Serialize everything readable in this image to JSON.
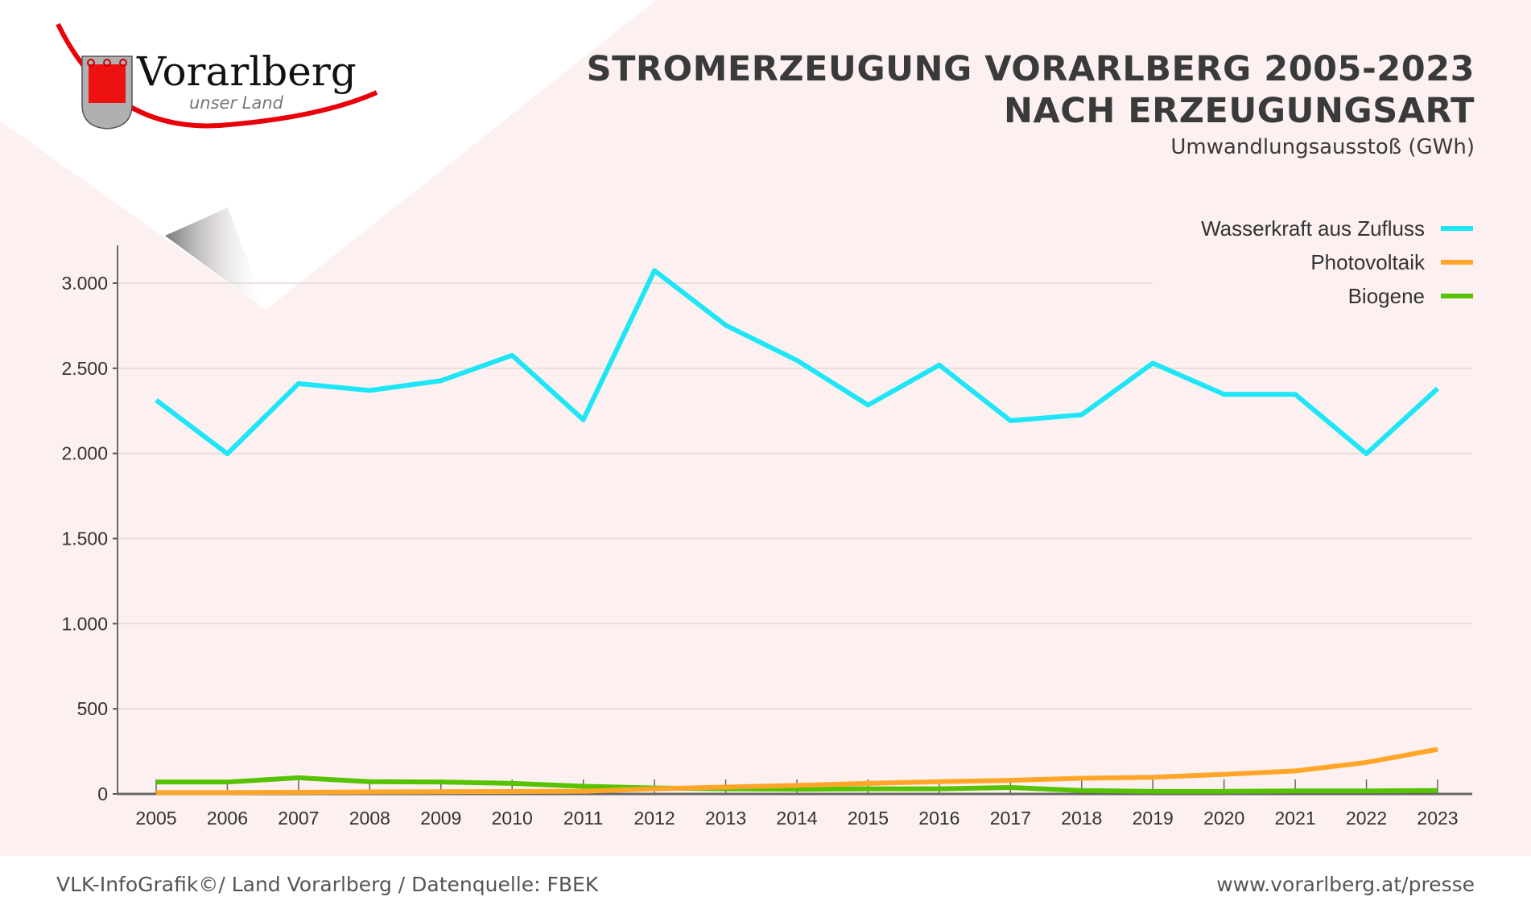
{
  "header": {
    "title_line1": "STROMERZEUGUNG VORARLBERG 2005-2023",
    "title_line2": "NACH ERZEUGUNGSART",
    "subtitle": "Umwandlungsausstoß (GWh)"
  },
  "logo": {
    "name": "Vorarlberg",
    "tagline": "unser Land"
  },
  "footer": {
    "credit": "VLK-InfoGrafik©/ Land Vorarlberg / Datenquelle: FBEK",
    "url": "www.vorarlberg.at/presse"
  },
  "chart_data": {
    "type": "line",
    "title": "STROMERZEUGUNG VORARLBERG 2005-2023 NACH ERZEUGUNGSART",
    "ylabel": "Umwandlungsausstoß (GWh)",
    "xlabel": "",
    "x": [
      "2005",
      "2006",
      "2007",
      "2008",
      "2009",
      "2010",
      "2011",
      "2012",
      "2013",
      "2014",
      "2015",
      "2016",
      "2017",
      "2018",
      "2019",
      "2020",
      "2021",
      "2022",
      "2023"
    ],
    "ylim": [
      0,
      3200
    ],
    "yticks": [
      0,
      500,
      1000,
      1500,
      2000,
      2500,
      3000
    ],
    "ytick_labels": [
      "0",
      "500",
      "1.000",
      "1.500",
      "2.000",
      "2.500",
      "3.000"
    ],
    "grid": true,
    "legend_position": "top-right",
    "series": [
      {
        "name": "Wasserkraft aus Zufluss",
        "color": "#1ee6f7",
        "values": [
          2313,
          1998,
          2410,
          2370,
          2427,
          2576,
          2198,
          3074,
          2753,
          2547,
          2284,
          2519,
          2192,
          2227,
          2530,
          2347,
          2347,
          1998,
          2381
        ]
      },
      {
        "name": "Photovoltaik",
        "color": "#ffa629",
        "values": [
          8,
          8,
          10,
          12,
          13,
          14,
          16,
          30,
          40,
          50,
          62,
          72,
          80,
          92,
          98,
          115,
          135,
          185,
          262
        ]
      },
      {
        "name": "Biogene",
        "color": "#57c300",
        "values": [
          70,
          70,
          95,
          72,
          70,
          62,
          45,
          35,
          30,
          28,
          30,
          30,
          38,
          20,
          15,
          15,
          18,
          18,
          20
        ]
      }
    ]
  }
}
